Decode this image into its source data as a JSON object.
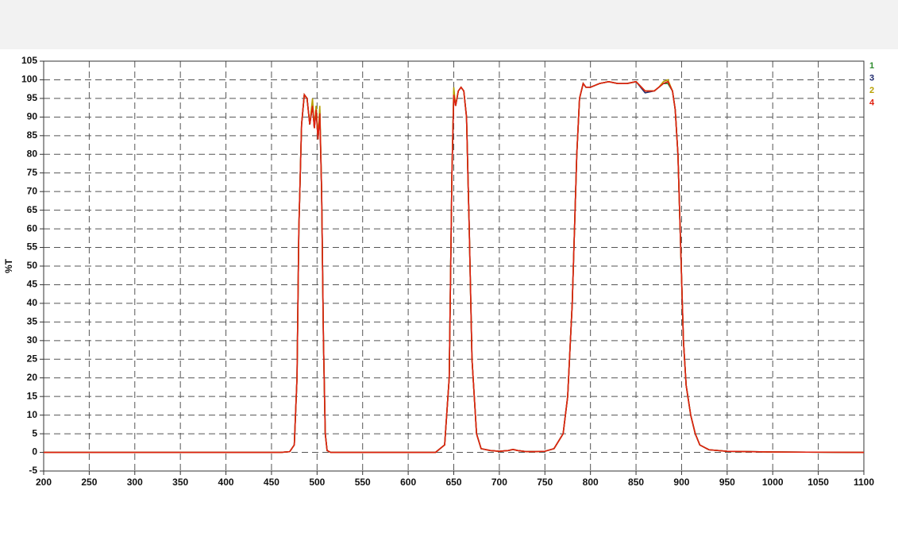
{
  "chart_data": {
    "type": "line",
    "y_label": "%T",
    "xlim": [
      200,
      1100
    ],
    "ylim": [
      -5,
      105
    ],
    "xticks": [
      200,
      250,
      300,
      350,
      400,
      450,
      500,
      550,
      600,
      650,
      700,
      750,
      800,
      850,
      900,
      950,
      1000,
      1050,
      1100
    ],
    "yticks": [
      -5,
      0,
      5,
      10,
      15,
      20,
      25,
      30,
      35,
      40,
      45,
      50,
      55,
      60,
      65,
      70,
      75,
      80,
      85,
      90,
      95,
      100,
      105
    ],
    "grid": true,
    "legend": "right",
    "x": [
      200,
      300,
      400,
      460,
      470,
      475,
      478,
      480,
      483,
      486,
      489,
      492,
      495,
      497,
      499,
      501,
      503,
      505,
      507,
      509,
      511,
      515,
      530,
      600,
      630,
      640,
      645,
      648,
      650,
      652,
      655,
      658,
      661,
      664,
      667,
      670,
      675,
      680,
      690,
      700,
      710,
      715,
      720,
      730,
      740,
      750,
      760,
      770,
      775,
      780,
      785,
      788,
      792,
      795,
      800,
      810,
      820,
      830,
      840,
      850,
      860,
      870,
      875,
      880,
      885,
      890,
      893,
      896,
      899,
      902,
      905,
      910,
      915,
      920,
      930,
      950,
      1000,
      1100
    ],
    "series": [
      {
        "name": "1",
        "color": "#2e8b2e",
        "values": [
          0,
          0,
          0,
          0,
          0.2,
          2,
          20,
          60,
          88,
          96,
          95,
          88,
          94,
          87,
          93,
          84,
          92,
          70,
          30,
          5,
          0.5,
          0,
          0,
          0,
          0,
          2,
          20,
          75,
          97,
          93,
          97,
          98,
          97,
          90,
          60,
          25,
          5,
          1,
          0.5,
          0.3,
          0.5,
          0.8,
          0.5,
          0.2,
          0.2,
          0.3,
          1,
          5,
          15,
          40,
          80,
          95,
          99,
          98,
          98,
          99,
          99.5,
          99,
          99,
          99.5,
          97,
          97,
          98,
          99,
          99,
          97,
          92,
          80,
          55,
          30,
          18,
          10,
          5,
          2,
          0.7,
          0.3,
          0.1,
          0
        ]
      },
      {
        "name": "3",
        "color": "#1f2a6e",
        "values": [
          0,
          0,
          0,
          0,
          0.2,
          2,
          20,
          60,
          88,
          96,
          95,
          88,
          93,
          87,
          92,
          84,
          91,
          70,
          30,
          5,
          0.5,
          0,
          0,
          0,
          0,
          2,
          20,
          75,
          96,
          93,
          97,
          98,
          97,
          90,
          60,
          25,
          5,
          1,
          0.5,
          0.3,
          0.5,
          0.8,
          0.5,
          0.2,
          0.2,
          0.3,
          1,
          5,
          15,
          40,
          80,
          95,
          99,
          98,
          98,
          99,
          99.5,
          99,
          99,
          99.5,
          96.5,
          97,
          98,
          99,
          99.5,
          97,
          92,
          80,
          55,
          30,
          18,
          10,
          5,
          2,
          0.7,
          0.3,
          0.1,
          0
        ]
      },
      {
        "name": "2",
        "color": "#b8a000",
        "values": [
          0,
          0,
          0,
          0,
          0.2,
          2,
          20,
          60,
          88,
          96,
          95,
          88,
          95,
          87,
          93,
          84,
          93,
          70,
          30,
          5,
          0.5,
          0,
          0,
          0,
          0,
          2,
          20,
          75,
          98,
          93,
          97,
          98,
          97,
          90,
          60,
          25,
          5,
          1,
          0.5,
          0.3,
          0.5,
          0.8,
          0.5,
          0.2,
          0.2,
          0.3,
          1,
          5,
          15,
          40,
          80,
          95,
          99,
          98,
          98,
          99,
          99.5,
          99,
          99,
          99.5,
          97,
          97,
          98,
          99.5,
          100,
          97,
          92,
          80,
          55,
          30,
          18,
          10,
          5,
          2,
          0.7,
          0.3,
          0.1,
          0
        ]
      },
      {
        "name": "4",
        "color": "#e02010",
        "values": [
          0,
          0,
          0,
          0,
          0.2,
          2,
          20,
          60,
          88,
          96,
          95,
          88,
          93,
          87,
          92,
          84,
          91,
          70,
          30,
          5,
          0.5,
          0,
          0,
          0,
          0,
          2,
          20,
          75,
          96,
          93,
          97,
          98,
          97,
          90,
          60,
          25,
          5,
          1,
          0.5,
          0.3,
          0.5,
          0.8,
          0.5,
          0.2,
          0.2,
          0.3,
          1,
          5,
          15,
          40,
          80,
          95,
          99,
          98,
          98,
          99,
          99.5,
          99,
          99,
          99.5,
          97,
          97,
          98,
          99,
          99.5,
          97,
          92,
          80,
          55,
          30,
          18,
          10,
          5,
          2,
          0.7,
          0.3,
          0.1,
          0
        ]
      }
    ]
  }
}
